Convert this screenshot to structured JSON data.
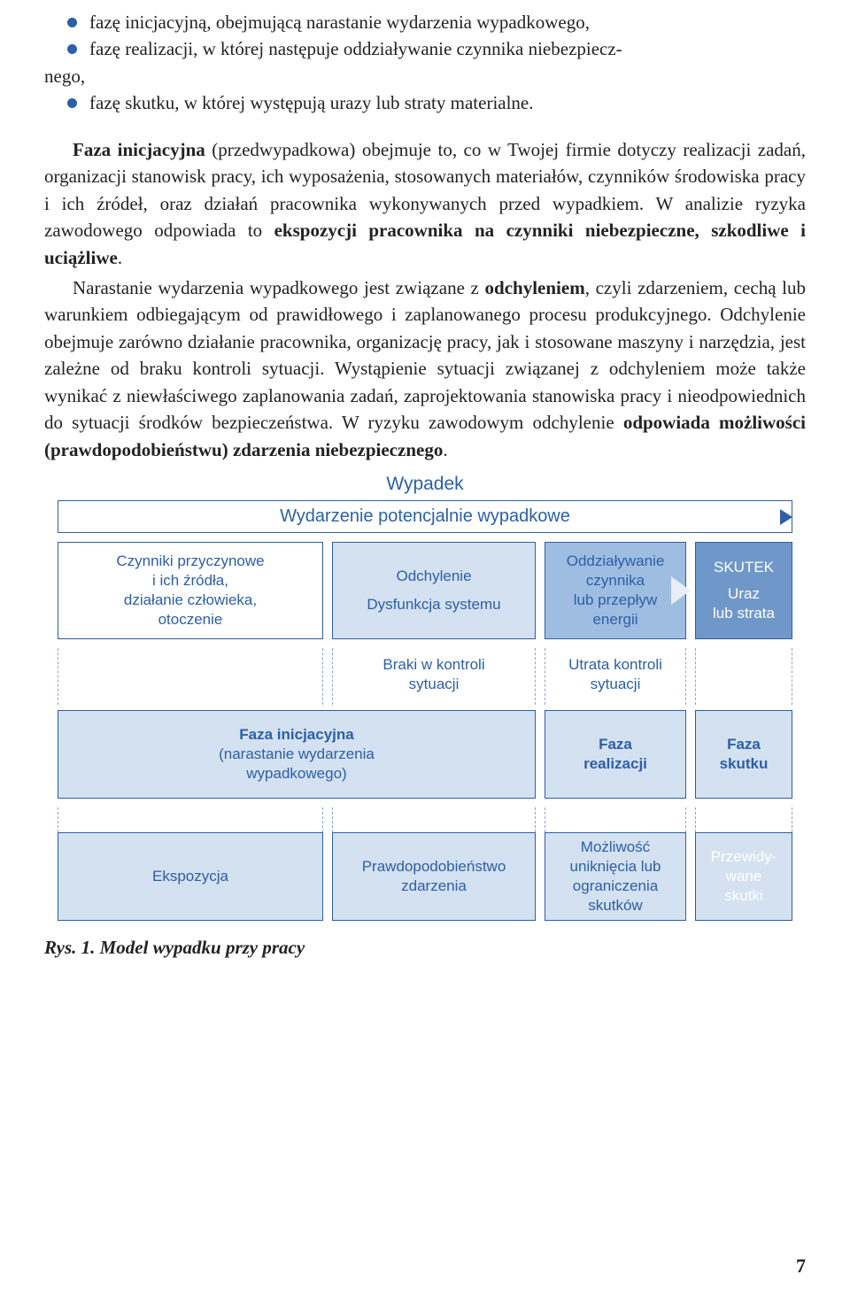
{
  "bullets": {
    "b1": "fazę inicjacyjną, obejmującą narastanie wydarzenia wypadkowego,",
    "b2a": "fazę realizacji, w której następuje oddziaływanie czynnika niebezpiecz-",
    "b2b": "nego,",
    "b3": "fazę skutku, w której występują urazy lub straty materialne."
  },
  "para1": {
    "t1": "Faza inicjacyjna",
    "t2": " (przedwypadkowa) obejmuje to, co w Twojej firmie doty­czy realizacji zadań, organizacji stanowisk pracy, ich wyposażenia, stosowanych materiałów, czynników środowiska pracy i ich źródeł, oraz działań pracownika wykonywanych przed wypadkiem. W analizie ryzyka zawodowego odpowiada to ",
    "t3": "ekspozycji pracownika na czynniki niebezpieczne, szkodliwe i uciążliwe",
    "t4": "."
  },
  "para2": {
    "t1": "Narastanie wydarzenia wypadkowego jest związane z ",
    "t2": "odchyleniem",
    "t3": ", czyli zdarzeniem, cechą lub warunkiem odbiegającym od prawidłowego i zaplano­wanego procesu produkcyjnego. Odchylenie obejmuje zarówno działanie pra­cownika, organizację pracy, jak i stosowane maszyny i narzędzia, jest zależne od braku kontroli sytuacji. Wystąpienie sytuacji związanej z odchyleniem może także wynikać z niewłaściwego zaplanowania zadań, zaprojektowania stano­wiska pracy i nieodpowiednich do sytuacji środków bezpieczeństwa. W ryzyku zawodowym odchylenie ",
    "t4": "odpowiada możliwości (prawdopodobieństwu) zdarzenia niebezpiecznego",
    "t5": "."
  },
  "diagram": {
    "title": "Wypadek",
    "wide": "Wydarzenie potencjalnie wypadkowe",
    "main": {
      "c1": "Czynniki przyczynowe\ni ich źródła,\ndziałanie człowieka,\notoczenie",
      "c2a": "Odchylenie",
      "c2b": "Dysfunkcja systemu",
      "c3": "Oddziaływanie\nczynnika\nlub przepływ\nenergii",
      "c4a": "SKUTEK",
      "c4b": "Uraz\nlub strata"
    },
    "sub": {
      "s1": "",
      "s2": "Braki w kontroli\nsytuacji",
      "s3": "Utrata kontroli\nsytuacji",
      "s4": ""
    },
    "phase": {
      "p1a": "Faza inicjacyjna",
      "p1b": "(narastanie wydarzenia\nwypadkowego)",
      "p2": "Faza\nrealizacji",
      "p3": "Faza\nskutku"
    },
    "bottom": {
      "b1": "Ekspozycja",
      "b2": "Prawdopodobieństwo\nzdarzenia",
      "b3": "Możliwość\nuniknięcia lub\nograniczenia\nskutków",
      "b4": "Przewidy-\nwane\nskutki"
    },
    "widths": {
      "c1": 300,
      "c2": 240,
      "c3": 170,
      "c4": 110
    }
  },
  "rys": "Rys. 1. Model wypadku przy pracy",
  "page": "7",
  "colors": {
    "blue": "#2b5fa8",
    "light": "#d4e1f0",
    "mid": "#9fbde0",
    "dark": "#6f97c9"
  }
}
